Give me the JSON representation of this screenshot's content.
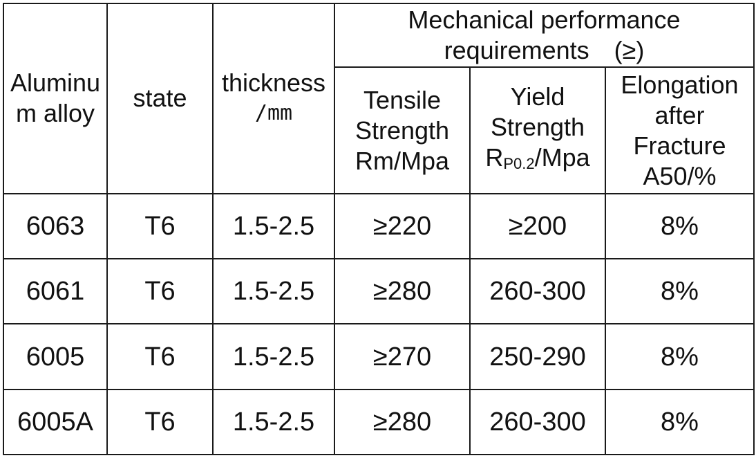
{
  "table": {
    "headers": {
      "alloy": [
        "Aluminu",
        "m alloy"
      ],
      "state": "state",
      "thickness": [
        "thickness"
      ],
      "thickness_unit": "/mm",
      "group": [
        "Mechanical performance",
        "requirements　(≥)"
      ],
      "tensile": [
        "Tensile",
        "Strength",
        "Rm/Mpa"
      ],
      "yield_prefix": "R",
      "yield_sub": "P0.2",
      "yield_suffix": "/Mpa",
      "yield_lines": [
        "Yield",
        "Strength"
      ],
      "elongation": [
        "Elongation",
        "after",
        "Fracture",
        "A50/%"
      ]
    },
    "rows": [
      {
        "alloy": "6063",
        "state": "T6",
        "thickness": "1.5-2.5",
        "tensile": "≥220",
        "yield": "≥200",
        "elongation": "8%"
      },
      {
        "alloy": "6061",
        "state": "T6",
        "thickness": "1.5-2.5",
        "tensile": "≥280",
        "yield": "260-300",
        "elongation": "8%"
      },
      {
        "alloy": "6005",
        "state": "T6",
        "thickness": "1.5-2.5",
        "tensile": "≥270",
        "yield": "250-290",
        "elongation": "8%"
      },
      {
        "alloy": "6005A",
        "state": "T6",
        "thickness": "1.5-2.5",
        "tensile": "≥280",
        "yield": "260-300",
        "elongation": "8%"
      }
    ]
  }
}
